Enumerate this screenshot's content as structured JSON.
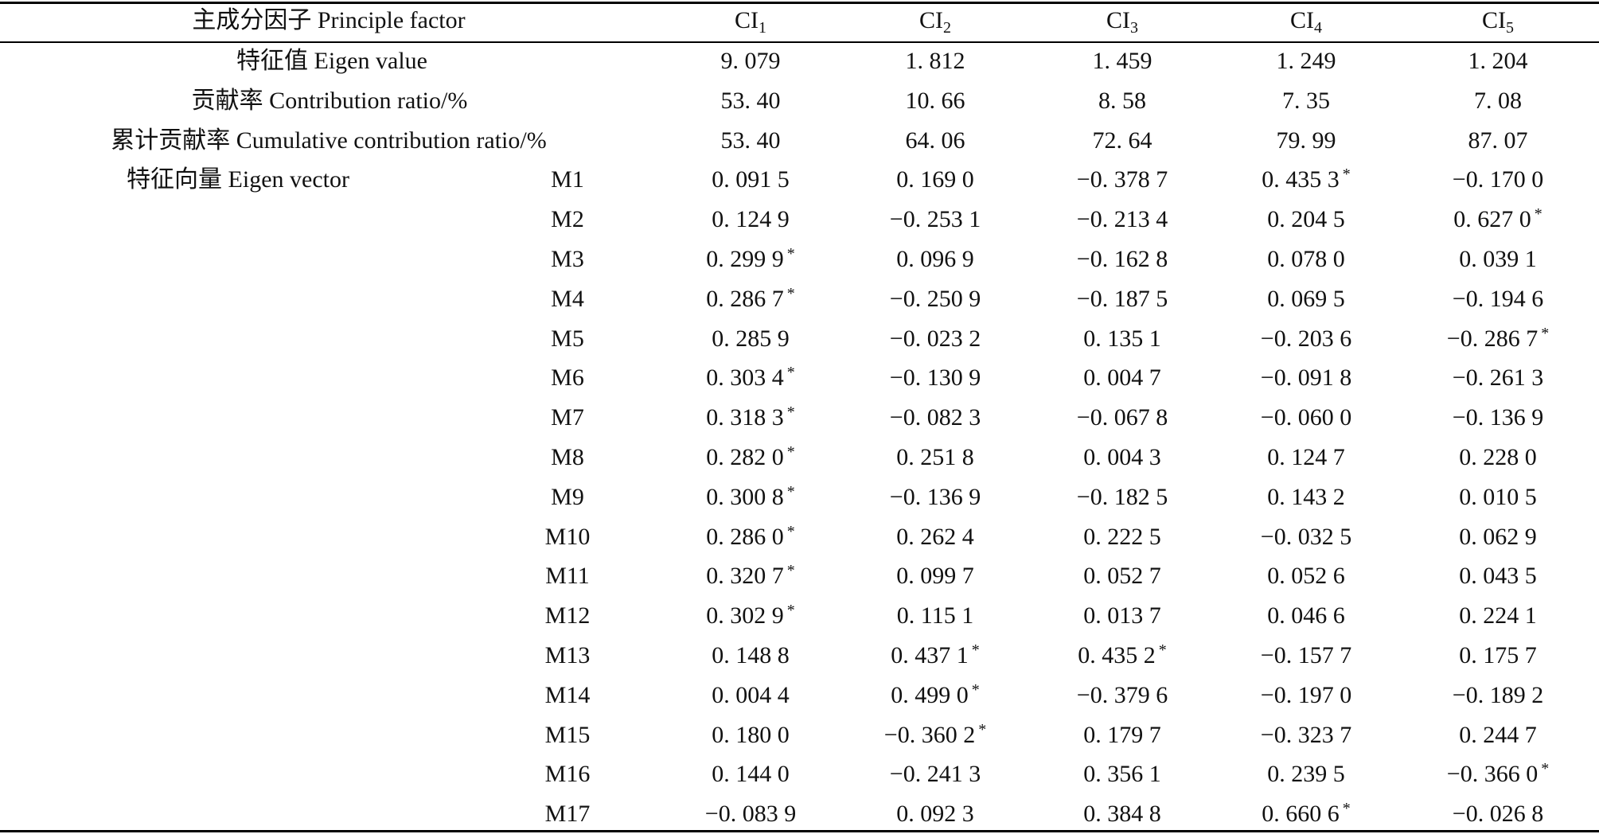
{
  "header": {
    "factor_label": "主成分因子 Principle factor",
    "columns": [
      {
        "base": "CI",
        "sub": "1"
      },
      {
        "base": "CI",
        "sub": "2"
      },
      {
        "base": "CI",
        "sub": "3"
      },
      {
        "base": "CI",
        "sub": "4"
      },
      {
        "base": "CI",
        "sub": "5"
      }
    ]
  },
  "summary_rows": [
    {
      "label": "特征值 Eigen value",
      "values": [
        "9. 079",
        "1. 812",
        "1. 459",
        "1. 249",
        "1. 204"
      ]
    },
    {
      "label": "贡献率 Contribution ratio/%",
      "values": [
        "53. 40",
        "10. 66",
        "8. 58",
        "7. 35",
        "7. 08"
      ]
    },
    {
      "label": "累计贡献率 Cumulative contribution ratio/%",
      "values": [
        "53. 40",
        "64. 06",
        "72. 64",
        "79. 99",
        "87. 07"
      ]
    }
  ],
  "eigen_vector_label": "特征向量 Eigen vector",
  "vector_rows": [
    {
      "name": "M1",
      "cells": [
        {
          "v": "0. 091 5",
          "s": ""
        },
        {
          "v": "0. 169 0",
          "s": ""
        },
        {
          "v": "−0. 378 7",
          "s": ""
        },
        {
          "v": "0. 435 3",
          "s": "*"
        },
        {
          "v": "−0. 170 0",
          "s": ""
        }
      ]
    },
    {
      "name": "M2",
      "cells": [
        {
          "v": "0. 124 9",
          "s": ""
        },
        {
          "v": "−0. 253 1",
          "s": ""
        },
        {
          "v": "−0. 213 4",
          "s": ""
        },
        {
          "v": "0. 204 5",
          "s": ""
        },
        {
          "v": "0. 627 0",
          "s": "*"
        }
      ]
    },
    {
      "name": "M3",
      "cells": [
        {
          "v": "0. 299 9",
          "s": "*"
        },
        {
          "v": "0. 096 9",
          "s": ""
        },
        {
          "v": "−0. 162 8",
          "s": ""
        },
        {
          "v": "0. 078 0",
          "s": ""
        },
        {
          "v": "0. 039 1",
          "s": ""
        }
      ]
    },
    {
      "name": "M4",
      "cells": [
        {
          "v": "0. 286 7",
          "s": "*"
        },
        {
          "v": "−0. 250 9",
          "s": ""
        },
        {
          "v": "−0. 187 5",
          "s": ""
        },
        {
          "v": "0. 069 5",
          "s": ""
        },
        {
          "v": "−0. 194 6",
          "s": ""
        }
      ]
    },
    {
      "name": "M5",
      "cells": [
        {
          "v": "0. 285 9",
          "s": ""
        },
        {
          "v": "−0. 023 2",
          "s": ""
        },
        {
          "v": "0. 135 1",
          "s": ""
        },
        {
          "v": "−0. 203 6",
          "s": ""
        },
        {
          "v": "−0. 286 7",
          "s": "*"
        }
      ]
    },
    {
      "name": "M6",
      "cells": [
        {
          "v": "0. 303 4",
          "s": "*"
        },
        {
          "v": "−0. 130 9",
          "s": ""
        },
        {
          "v": "0. 004 7",
          "s": ""
        },
        {
          "v": "−0. 091 8",
          "s": ""
        },
        {
          "v": "−0. 261 3",
          "s": ""
        }
      ]
    },
    {
      "name": "M7",
      "cells": [
        {
          "v": "0. 318 3",
          "s": "*"
        },
        {
          "v": "−0. 082 3",
          "s": ""
        },
        {
          "v": "−0. 067 8",
          "s": ""
        },
        {
          "v": "−0. 060 0",
          "s": ""
        },
        {
          "v": "−0. 136 9",
          "s": ""
        }
      ]
    },
    {
      "name": "M8",
      "cells": [
        {
          "v": "0. 282 0",
          "s": "*"
        },
        {
          "v": "0. 251 8",
          "s": ""
        },
        {
          "v": "0. 004 3",
          "s": ""
        },
        {
          "v": "0. 124 7",
          "s": ""
        },
        {
          "v": "0. 228 0",
          "s": ""
        }
      ]
    },
    {
      "name": "M9",
      "cells": [
        {
          "v": "0. 300 8",
          "s": "*"
        },
        {
          "v": "−0. 136 9",
          "s": ""
        },
        {
          "v": "−0. 182 5",
          "s": ""
        },
        {
          "v": "0. 143 2",
          "s": ""
        },
        {
          "v": "0. 010 5",
          "s": ""
        }
      ]
    },
    {
      "name": "M10",
      "cells": [
        {
          "v": "0. 286 0",
          "s": "*"
        },
        {
          "v": "0. 262 4",
          "s": ""
        },
        {
          "v": "0. 222 5",
          "s": ""
        },
        {
          "v": "−0. 032 5",
          "s": ""
        },
        {
          "v": "0. 062 9",
          "s": ""
        }
      ]
    },
    {
      "name": "M11",
      "cells": [
        {
          "v": "0. 320 7",
          "s": "*"
        },
        {
          "v": "0. 099 7",
          "s": ""
        },
        {
          "v": "0. 052 7",
          "s": ""
        },
        {
          "v": "0. 052 6",
          "s": ""
        },
        {
          "v": "0. 043 5",
          "s": ""
        }
      ]
    },
    {
      "name": "M12",
      "cells": [
        {
          "v": "0. 302 9",
          "s": "*"
        },
        {
          "v": "0. 115 1",
          "s": ""
        },
        {
          "v": "0. 013 7",
          "s": ""
        },
        {
          "v": "0. 046 6",
          "s": ""
        },
        {
          "v": "0. 224 1",
          "s": ""
        }
      ]
    },
    {
      "name": "M13",
      "cells": [
        {
          "v": "0. 148 8",
          "s": ""
        },
        {
          "v": "0. 437 1",
          "s": "*"
        },
        {
          "v": "0. 435 2",
          "s": "*"
        },
        {
          "v": "−0. 157 7",
          "s": ""
        },
        {
          "v": "0. 175 7",
          "s": ""
        }
      ]
    },
    {
      "name": "M14",
      "cells": [
        {
          "v": "0. 004 4",
          "s": ""
        },
        {
          "v": "0. 499 0",
          "s": "*"
        },
        {
          "v": "−0. 379 6",
          "s": ""
        },
        {
          "v": "−0. 197 0",
          "s": ""
        },
        {
          "v": "−0. 189 2",
          "s": ""
        }
      ]
    },
    {
      "name": "M15",
      "cells": [
        {
          "v": "0. 180 0",
          "s": ""
        },
        {
          "v": "−0. 360 2",
          "s": "*"
        },
        {
          "v": "0. 179 7",
          "s": ""
        },
        {
          "v": "−0. 323 7",
          "s": ""
        },
        {
          "v": "0. 244 7",
          "s": ""
        }
      ]
    },
    {
      "name": "M16",
      "cells": [
        {
          "v": "0. 144 0",
          "s": ""
        },
        {
          "v": "−0. 241 3",
          "s": ""
        },
        {
          "v": "0. 356 1",
          "s": ""
        },
        {
          "v": "0. 239 5",
          "s": ""
        },
        {
          "v": "−0. 366 0",
          "s": "*"
        }
      ]
    },
    {
      "name": "M17",
      "cells": [
        {
          "v": "−0. 083 9",
          "s": ""
        },
        {
          "v": "0. 092 3",
          "s": ""
        },
        {
          "v": "0. 384 8",
          "s": ""
        },
        {
          "v": "0. 660 6",
          "s": "*"
        },
        {
          "v": "−0. 026 8",
          "s": ""
        }
      ]
    }
  ]
}
